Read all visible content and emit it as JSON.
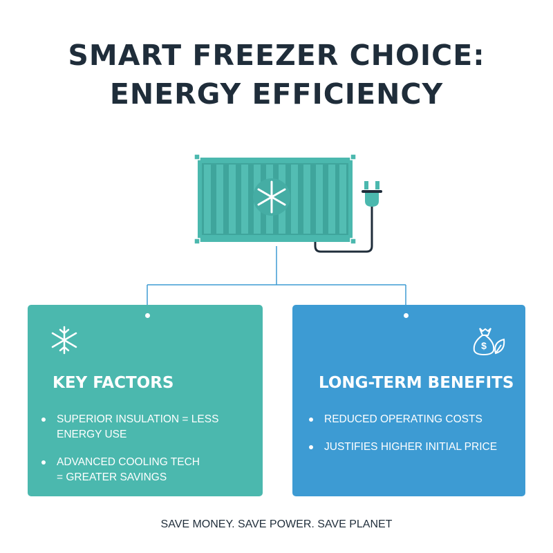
{
  "title": {
    "line1": "SMART FREEZER CHOICE:",
    "line2": "ENERGY EFFICIENCY"
  },
  "colors": {
    "teal": "#4bb8ae",
    "blue": "#3d9bd3",
    "navy": "#1f2d3a"
  },
  "left_card": {
    "icon": "snowflake-icon",
    "heading": "KEY FACTORS",
    "items": [
      "Superior insulation = less energy use",
      "Advanced cooling tech = greater savings"
    ]
  },
  "right_card": {
    "icon": "money-bag-leaf-icon",
    "heading": "LONG-TERM BENEFITS",
    "items": [
      "Reduced operating costs",
      "Justifies higher initial price"
    ]
  },
  "footer": "SAVE MONEY. SAVE POWER. SAVE PLANET"
}
